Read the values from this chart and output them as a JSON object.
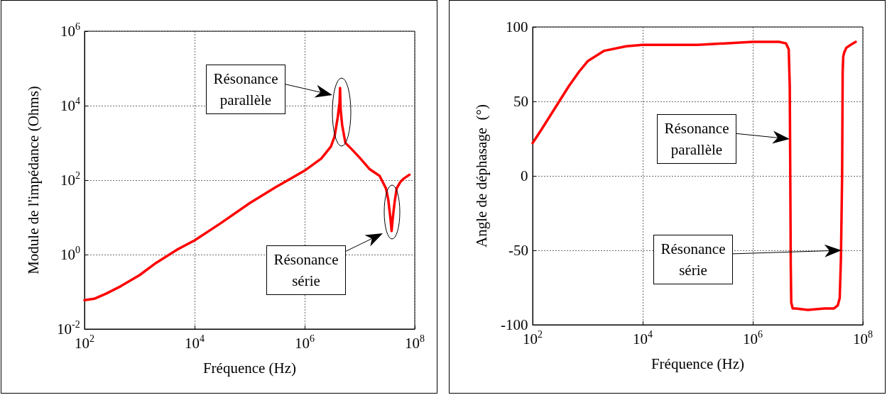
{
  "chart_data": [
    {
      "type": "line",
      "xlabel": "Fréquence (Hz)",
      "ylabel": "Module de l'impédance (Ohms)",
      "log": "xy",
      "grid": true,
      "marker": "none",
      "line_style": "solid",
      "xlim": [
        100,
        100000000
      ],
      "ylim": [
        0.01,
        1000000
      ],
      "xticks": [
        {
          "value": 100,
          "label": "10$^{2}$"
        },
        {
          "value": 10000,
          "label": "10$^{4}$"
        },
        {
          "value": 1000000,
          "label": "10$^{6}$"
        },
        {
          "value": 100000000,
          "label": "10$^{8}$"
        }
      ],
      "yticks": [
        {
          "value": 0.01,
          "label": "10$^{-2}$"
        },
        {
          "value": 1,
          "label": "10$^{0}$"
        },
        {
          "value": 100,
          "label": "10$^{2}$"
        },
        {
          "value": 10000,
          "label": "10$^{4}$"
        },
        {
          "value": 1000000,
          "label": "10$^{6}$"
        }
      ],
      "series": [
        {
          "color": "#ff0000",
          "x": [
            100,
            150,
            250,
            450,
            1000,
            2000,
            5000,
            10000,
            30000,
            100000,
            300000,
            1000000,
            2000000,
            3000000,
            3500000,
            4000000,
            4300000,
            4400000,
            4500000,
            4800000,
            5500000,
            7000000,
            10000000,
            15000000,
            23000000,
            30000000,
            33000000,
            36000000,
            38000000,
            40000000,
            43000000,
            47000000,
            55000000,
            63000000,
            80000000
          ],
          "values": [
            0.06,
            0.065,
            0.09,
            0.14,
            0.28,
            0.6,
            1.4,
            2.4,
            7,
            24,
            65,
            180,
            380,
            800,
            1500,
            5000,
            12000,
            30000,
            8000,
            3000,
            1000,
            700,
            400,
            200,
            130,
            60,
            30,
            10,
            4.3,
            10,
            25,
            60,
            90,
            110,
            140
          ]
        }
      ],
      "annotations": [
        "Résonance parallèle",
        "Résonance série"
      ]
    },
    {
      "type": "line",
      "xlabel": "Fréquence (Hz)",
      "ylabel": "Angle de déphasage  (°)",
      "log": "x",
      "grid": true,
      "marker": "none",
      "line_style": "solid",
      "xlim": [
        100,
        100000000
      ],
      "ylim": [
        -100,
        100
      ],
      "xticks": [
        {
          "value": 100,
          "label": "10$^{2}$"
        },
        {
          "value": 10000,
          "label": "10$^{4}$"
        },
        {
          "value": 1000000,
          "label": "10$^{6}$"
        },
        {
          "value": 100000000,
          "label": "10$^{8}$"
        }
      ],
      "yticks": [
        -100,
        -50,
        0,
        50,
        100
      ],
      "series": [
        {
          "color": "#ff0000",
          "x": [
            100,
            150,
            250,
            450,
            700,
            1000,
            2000,
            5000,
            10000,
            100000,
            1000000,
            3000000,
            4000000,
            4500000,
            4700000,
            4800000,
            4900000,
            5000000,
            5300000,
            6000000,
            10000000,
            20000000,
            30000000,
            35000000,
            38000000,
            40000000,
            42000000,
            43000000,
            44000000,
            46000000,
            50000000,
            60000000,
            74000000
          ],
          "values": [
            22,
            32,
            45,
            60,
            70,
            77,
            84,
            87,
            88,
            88,
            90,
            90,
            89,
            85,
            60,
            0,
            -60,
            -85,
            -89,
            -89,
            -90,
            -89,
            -89,
            -87,
            -82,
            -55,
            0,
            70,
            80,
            83,
            86,
            88,
            90
          ]
        }
      ],
      "annotations": [
        "Résonance parallèle",
        "Résonance série"
      ]
    }
  ]
}
